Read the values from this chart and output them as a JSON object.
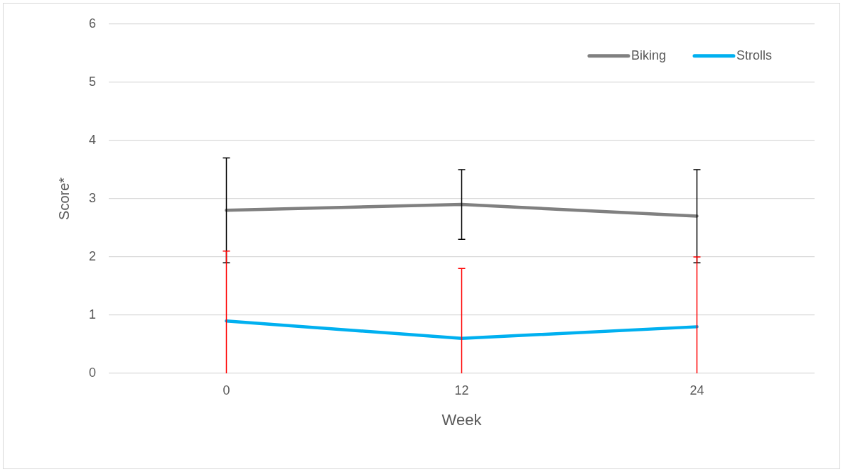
{
  "chart_data": {
    "type": "line",
    "xlabel": "Week",
    "ylabel": "Score*",
    "categories": [
      "0",
      "12",
      "24"
    ],
    "series": [
      {
        "name": "Biking",
        "color": "#808080",
        "values": [
          2.8,
          2.9,
          2.7
        ],
        "errors": [
          0.9,
          0.6,
          0.8
        ]
      },
      {
        "name": "Strolls",
        "color": "#00b0f0",
        "values": [
          0.9,
          0.6,
          0.8
        ],
        "errors": [
          [
            0,
            2.1
          ],
          [
            0,
            1.8
          ],
          [
            0,
            2.0
          ]
        ]
      }
    ],
    "ylim": [
      0,
      6
    ],
    "yticks": [
      0,
      1,
      2,
      3,
      4,
      5,
      6
    ],
    "grid": "y",
    "legend": "top right",
    "marker": "none",
    "line_style": "solid"
  }
}
